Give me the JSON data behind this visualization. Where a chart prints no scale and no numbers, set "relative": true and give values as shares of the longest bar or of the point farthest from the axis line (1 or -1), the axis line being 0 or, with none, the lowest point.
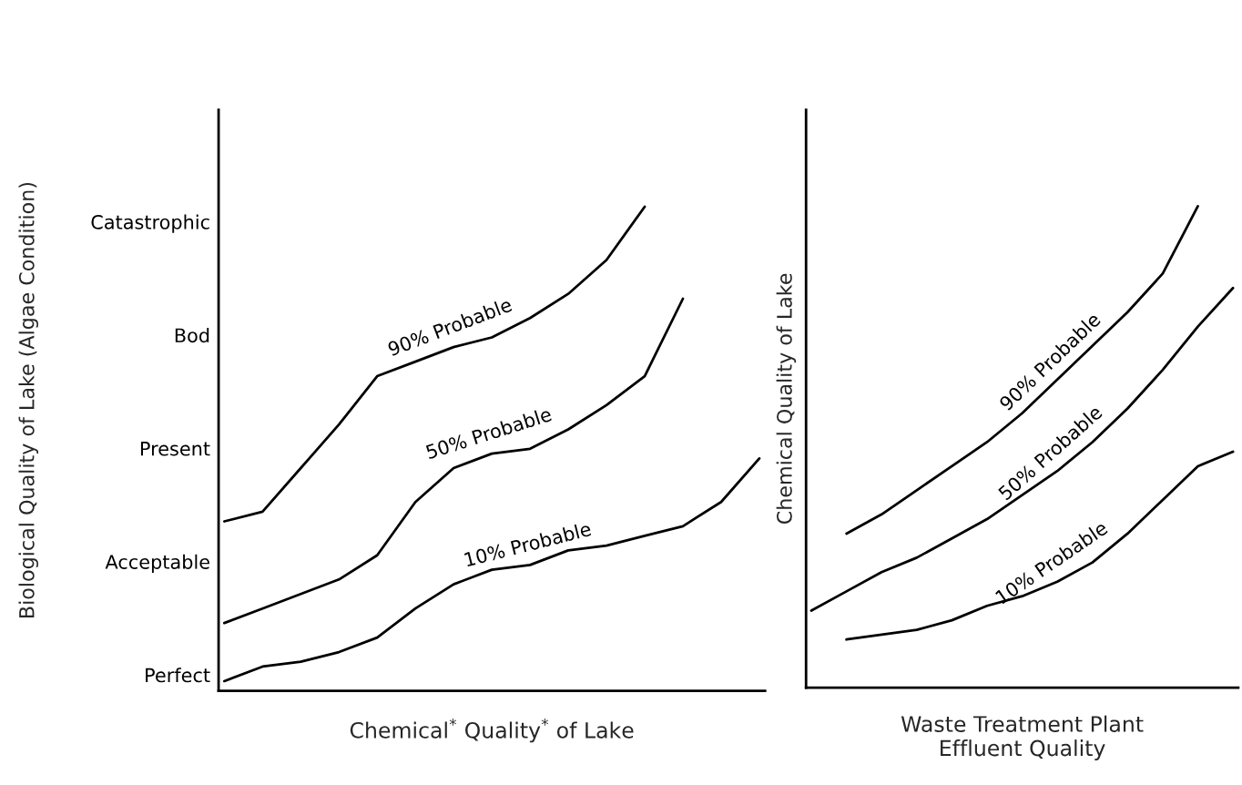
{
  "chart_data": [
    {
      "type": "line",
      "xlabel": "Chemical$^{*}$ Quality$^{*}$ of Lake",
      "ylabel": "Biological Quality of Lake (Algae Condition)",
      "categories": [
        null,
        null,
        null,
        null,
        null,
        null,
        null,
        null,
        null,
        null,
        null,
        null,
        null,
        null,
        null
      ],
      "relative": true,
      "tick_labels": false,
      "annotations": [
        "Perfect",
        "Acceptable",
        "Present",
        "Bod",
        "Catastrophic"
      ],
      "series": [
        {
          "name": "90% Probable",
          "color": "#000000",
          "values": [
            0.35,
            0.37,
            0.46,
            0.55,
            0.65,
            0.68,
            0.71,
            0.73,
            0.77,
            0.82,
            0.89,
            1.0,
            null,
            null,
            null
          ]
        },
        {
          "name": "50% Probable",
          "color": "#000000",
          "values": [
            0.14,
            0.17,
            0.2,
            0.23,
            0.28,
            0.39,
            0.46,
            0.49,
            0.5,
            0.54,
            0.59,
            0.65,
            0.81,
            null,
            null
          ]
        },
        {
          "name": "10% Probable",
          "color": "#000000",
          "values": [
            0.02,
            0.05,
            0.06,
            0.08,
            0.11,
            0.17,
            0.22,
            0.25,
            0.26,
            0.29,
            0.3,
            0.32,
            0.34,
            0.39,
            0.48
          ]
        }
      ]
    },
    {
      "type": "line",
      "xlabel": "Waste Treatment Plant\nEffluent Quality",
      "ylabel": "Chemical Quality of Lake",
      "categories": [
        null,
        null,
        null,
        null,
        null,
        null,
        null,
        null,
        null,
        null,
        null,
        null,
        null
      ],
      "relative": true,
      "tick_labels": false,
      "series": [
        {
          "name": "90% Probable",
          "color": "#000000",
          "values": [
            null,
            0.32,
            0.36,
            0.41,
            0.46,
            0.51,
            0.57,
            0.64,
            0.71,
            0.78,
            0.86,
            1.0,
            null
          ]
        },
        {
          "name": "50% Probable",
          "color": "#000000",
          "values": [
            0.16,
            0.2,
            0.24,
            0.27,
            0.31,
            0.35,
            0.4,
            0.45,
            0.51,
            0.58,
            0.66,
            0.75,
            0.83
          ]
        },
        {
          "name": "10% Probable",
          "color": "#000000",
          "values": [
            null,
            0.1,
            0.11,
            0.12,
            0.14,
            0.17,
            0.19,
            0.22,
            0.26,
            0.32,
            0.39,
            0.46,
            0.49
          ]
        }
      ]
    }
  ]
}
